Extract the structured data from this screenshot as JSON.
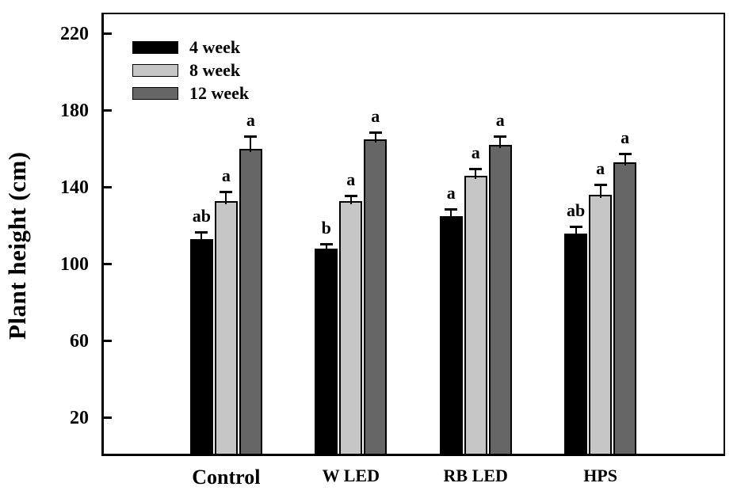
{
  "chart_data": {
    "type": "bar",
    "title": "",
    "xlabel": "",
    "ylabel": "Plant height (cm)",
    "categories": [
      "Control",
      "W LED",
      "RB LED",
      "HPS"
    ],
    "series": [
      {
        "name": "4 week",
        "color": "#000000",
        "values": [
          113,
          108,
          125,
          116
        ],
        "errors": [
          4,
          3,
          4,
          4
        ],
        "letters": [
          "ab",
          "b",
          "a",
          "ab"
        ]
      },
      {
        "name": "8 week",
        "color": "#c6c6c6",
        "values": [
          133,
          133,
          146,
          136
        ],
        "errors": [
          5,
          3,
          4,
          6
        ],
        "letters": [
          "a",
          "a",
          "a",
          "a"
        ]
      },
      {
        "name": "12 week",
        "color": "#666666",
        "values": [
          160,
          165,
          162,
          153
        ],
        "errors": [
          7,
          4,
          5,
          5
        ],
        "letters": [
          "a",
          "a",
          "a",
          "a"
        ]
      }
    ],
    "yticks": [
      20,
      60,
      100,
      140,
      180,
      220
    ],
    "ylim": [
      0,
      231
    ],
    "grid": false,
    "legend_position": "top-left",
    "frame_color": "#000000",
    "background_color": "#ffffff"
  }
}
